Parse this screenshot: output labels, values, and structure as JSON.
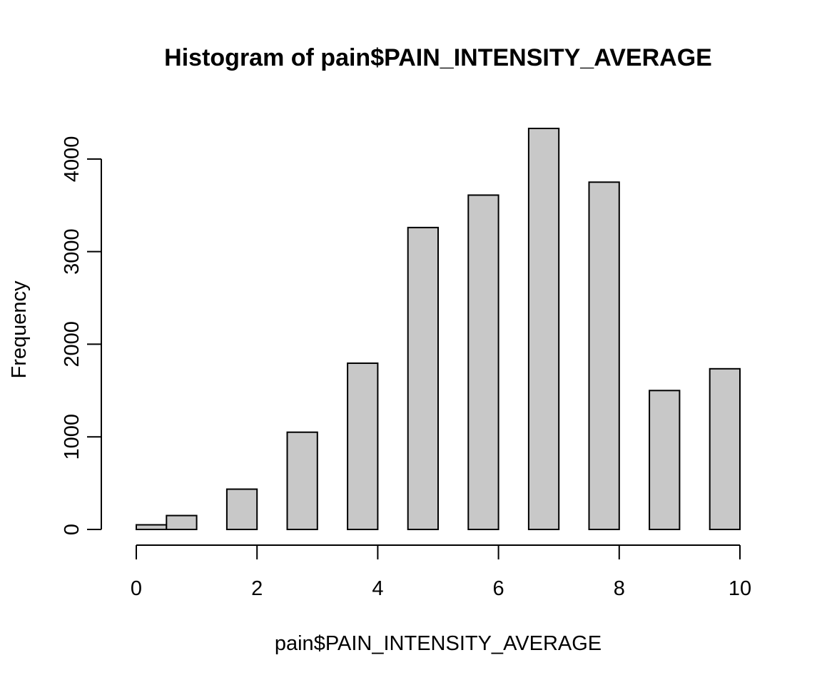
{
  "chart_data": {
    "type": "bar",
    "title": "Histogram of pain$PAIN_INTENSITY_AVERAGE",
    "xlabel": "pain$PAIN_INTENSITY_AVERAGE",
    "ylabel": "Frequency",
    "xlim": [
      0,
      10
    ],
    "ylim": [
      0,
      4330
    ],
    "x_ticks": [
      0,
      2,
      4,
      6,
      8,
      10
    ],
    "y_ticks": [
      0,
      1000,
      2000,
      3000,
      4000
    ],
    "grid": false,
    "bars": [
      {
        "x0": 0.0,
        "x1": 0.5,
        "value": 50
      },
      {
        "x0": 0.5,
        "x1": 1.0,
        "value": 150
      },
      {
        "x0": 1.5,
        "x1": 2.0,
        "value": 435
      },
      {
        "x0": 2.5,
        "x1": 3.0,
        "value": 1050
      },
      {
        "x0": 3.5,
        "x1": 4.0,
        "value": 1795
      },
      {
        "x0": 4.5,
        "x1": 5.0,
        "value": 3260
      },
      {
        "x0": 5.5,
        "x1": 6.0,
        "value": 3610
      },
      {
        "x0": 6.5,
        "x1": 7.0,
        "value": 4330
      },
      {
        "x0": 7.5,
        "x1": 8.0,
        "value": 3750
      },
      {
        "x0": 8.5,
        "x1": 9.0,
        "value": 1500
      },
      {
        "x0": 9.5,
        "x1": 10.0,
        "value": 1735
      }
    ],
    "colors": {
      "bar_fill": "#c8c8c8",
      "bar_stroke": "#000000"
    }
  }
}
